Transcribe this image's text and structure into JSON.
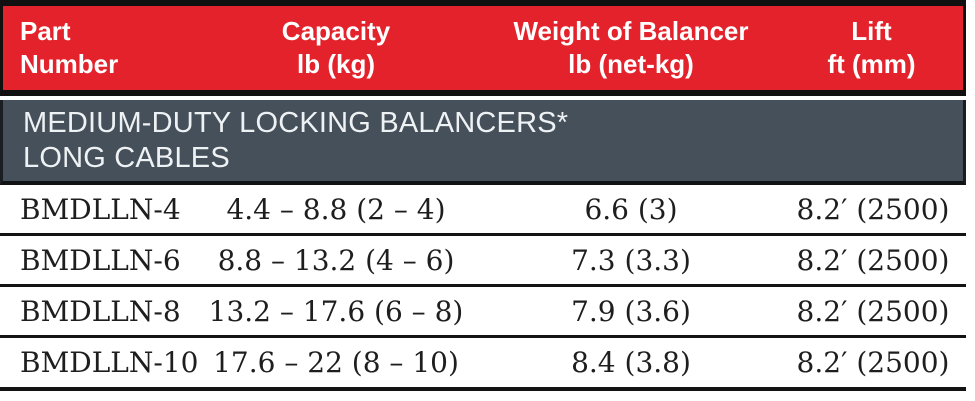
{
  "table": {
    "columns": [
      {
        "line1": "Part",
        "line2": "Number",
        "align": "left"
      },
      {
        "line1": "Capacity",
        "line2": "lb (kg)",
        "align": "center"
      },
      {
        "line1": "Weight of Balancer",
        "line2": "lb (net-kg)",
        "align": "center"
      },
      {
        "line1": "Lift",
        "line2": "ft (mm)",
        "align": "center"
      }
    ],
    "section": {
      "line1": "MEDIUM-DUTY LOCKING BALANCERS*",
      "line2": "LONG CABLES"
    },
    "rows": [
      {
        "part": "BMDLLN-4",
        "capacity": "4.4 – 8.8 (2 – 4)",
        "weight": "6.6 (3)",
        "lift": "8.2′ (2500)"
      },
      {
        "part": "BMDLLN-6",
        "capacity": "8.8 – 13.2 (4 – 6)",
        "weight": "7.3 (3.3)",
        "lift": "8.2′ (2500)"
      },
      {
        "part": "BMDLLN-8",
        "capacity": "13.2 – 17.6 (6 – 8)",
        "weight": "7.9 (3.6)",
        "lift": "8.2′ (2500)"
      },
      {
        "part": "BMDLLN-10",
        "capacity": "17.6 – 22 (8 – 10)",
        "weight": "8.4 (3.8)",
        "lift": "8.2′ (2500)"
      }
    ],
    "colors": {
      "header_bg": "#e3222b",
      "header_text": "#ffffff",
      "section_bg": "#46505a",
      "section_text": "#eef2f4",
      "rule": "#101010",
      "body_text": "#1e1e1e",
      "page_bg": "#ffffff"
    }
  }
}
